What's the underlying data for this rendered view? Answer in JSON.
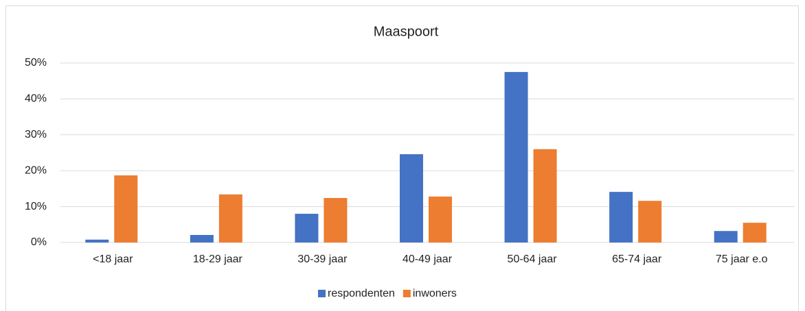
{
  "chart_data": {
    "type": "bar",
    "title": "Maaspoort",
    "categories": [
      "<18 jaar",
      "18-29 jaar",
      "30-39 jaar",
      "40-49 jaar",
      "50-64 jaar",
      "65-74 jaar",
      "75 jaar e.o"
    ],
    "series": [
      {
        "name": "respondenten",
        "color": "#4472c4",
        "values": [
          0.8,
          2.1,
          8.0,
          24.6,
          47.5,
          14.1,
          3.2
        ]
      },
      {
        "name": "inwoners",
        "color": "#ed7d31",
        "values": [
          18.7,
          13.4,
          12.4,
          12.8,
          26.0,
          11.6,
          5.5
        ]
      }
    ],
    "ylim": [
      0,
      50
    ],
    "yticks": [
      {
        "value": 0,
        "label": "0%"
      },
      {
        "value": 10,
        "label": "10%"
      },
      {
        "value": 20,
        "label": "20%"
      },
      {
        "value": 30,
        "label": "30%"
      },
      {
        "value": 40,
        "label": "40%"
      },
      {
        "value": 50,
        "label": "50%"
      }
    ],
    "grid": true,
    "legend": "bottom"
  }
}
